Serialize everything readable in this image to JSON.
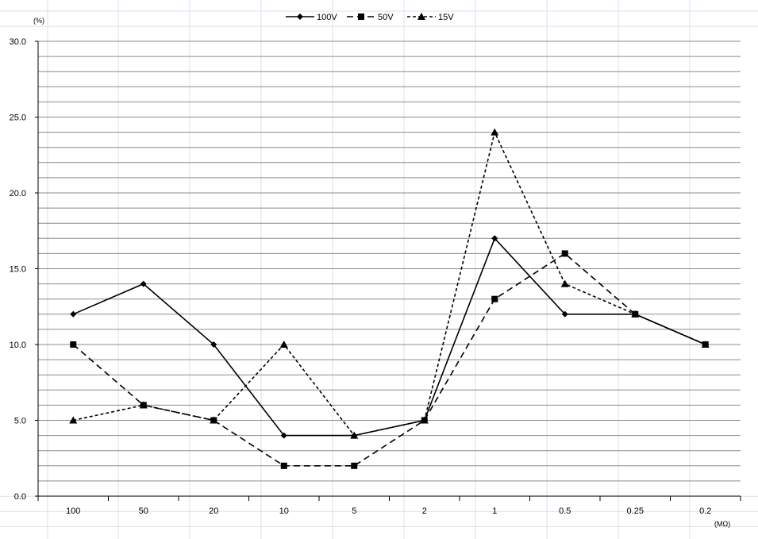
{
  "chart_data": {
    "type": "line",
    "title": "",
    "ylabel": "(%)",
    "xlabel": "(MΩ)",
    "categories": [
      "100",
      "50",
      "20",
      "10",
      "5",
      "2",
      "1",
      "0.5",
      "0.25",
      "0.2"
    ],
    "ylim": [
      0,
      30
    ],
    "yticks": [
      "0.0",
      "5.0",
      "10.0",
      "15.0",
      "20.0",
      "25.0",
      "30.0"
    ],
    "grid": true,
    "legend_position": "top-center",
    "series": [
      {
        "name": "100V",
        "marker": "diamond",
        "dash": "solid",
        "values": [
          12,
          14,
          10,
          4,
          4,
          5,
          17,
          12,
          12,
          10
        ]
      },
      {
        "name": "50V",
        "marker": "square",
        "dash": "long-dash",
        "values": [
          10,
          6,
          5,
          2,
          2,
          5,
          13,
          16,
          12,
          10
        ]
      },
      {
        "name": "15V",
        "marker": "triangle",
        "dash": "short-dash",
        "values": [
          5,
          6,
          5,
          10,
          4,
          5,
          24,
          14,
          12,
          10
        ]
      }
    ],
    "colors": {
      "line": "#000000",
      "gridline": "#8c8c8c",
      "cell_grid": "#d9e2ec"
    }
  }
}
